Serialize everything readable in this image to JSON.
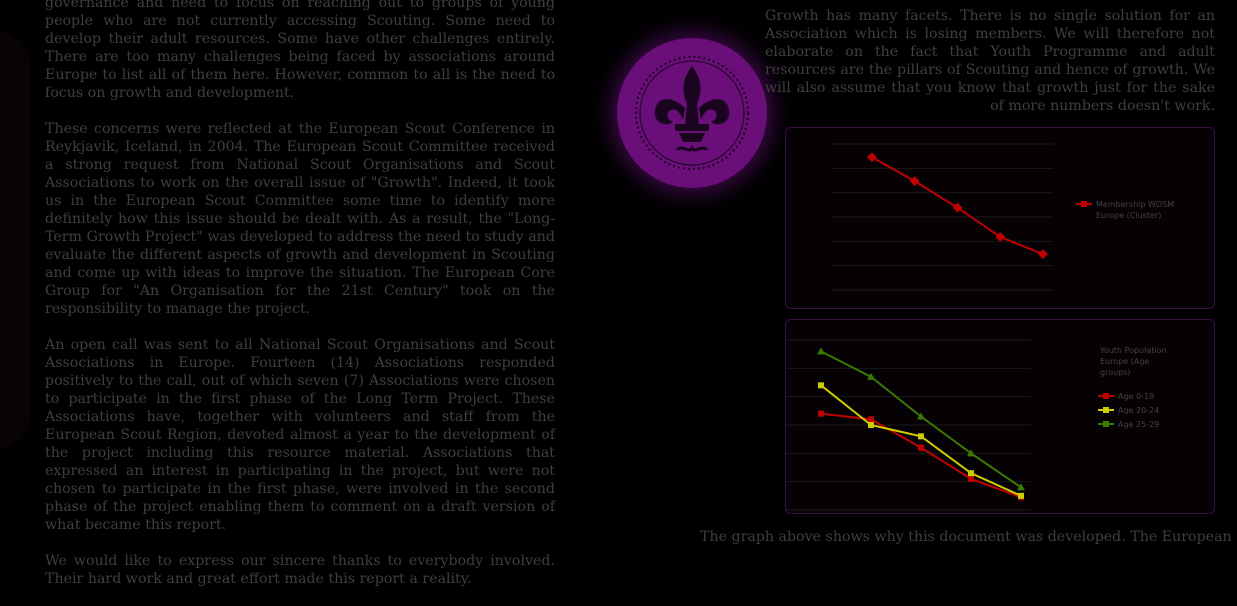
{
  "left_column": {
    "paragraphs": [
      "governance and need to focus on reaching out to groups of young people who are not currently accessing Scouting. Some need to develop their adult resources. Some have other challenges entirely. There are too many challenges being faced by associations around Europe to list all of them here. However, common to all is the need to focus on growth and development.",
      "These concerns were reflected at the European Scout Conference in Reykjavik, Iceland, in 2004. The European Scout Committee received a strong request from National Scout Organisations and Scout Associations to work on the overall issue of \"Growth\". Indeed, it took us in the European Scout Committee some time to identify more definitely how this issue should be dealt with. As a result, the \"Long-Term Growth Project\" was developed to address the need to study and evaluate the different aspects of growth and development in Scouting and come up with ideas to improve the situation. The European Core Group for \"An Organisation for the 21st Century\" took on the responsibility to manage the project.",
      "An open call was sent to all National Scout Organisations and Scout Associations in Europe. Fourteen (14) Associations responded positively to the call, out of which seven (7) Associations were chosen to participate in the first phase of the Long Term Project. These Associations have, together with volunteers and staff from the European Scout Region, devoted almost a year to the development of the project including this resource material. Associations that expressed an interest in participating in the project, but were not chosen to participate in the first phase, were involved in the second phase of the project enabling them to comment on a draft version of what became this report.",
      "We would like to express our sincere thanks to everybody involved. Their hard work and great effort made this report a reality."
    ]
  },
  "right_column": {
    "intro_first": "Growth has many facets. There is no single solution for an Association which is losing members. We will therefore not elaborate on the fact that Youth Programme and adult resources are the pillars of Scouting and hence of growth. We will also assume that you know that growth just for the sake of more numbers doesn't work.",
    "bottom_text": "The graph above shows why this document was developed. The European"
  },
  "chart_data": [
    {
      "type": "line",
      "x": [
        1,
        2,
        3,
        4,
        5
      ],
      "series": [
        {
          "name": "Membership WOSM Europe (Cluster)",
          "values": [
            100,
            82,
            62,
            40,
            27
          ],
          "color": "#c00000"
        }
      ],
      "ylim": [
        0,
        110
      ],
      "legend_placement": "right",
      "grid": true
    },
    {
      "type": "line",
      "title": "Youth Population Europe (Age groups)",
      "x": [
        1,
        2,
        3,
        4,
        5
      ],
      "series": [
        {
          "name": "Age 0-19",
          "values": [
            68,
            64,
            44,
            22,
            9
          ],
          "color": "#c00000"
        },
        {
          "name": "Age 20-24",
          "values": [
            88,
            60,
            52,
            26,
            10
          ],
          "color": "#cccc00"
        },
        {
          "name": "Age 25-29",
          "values": [
            112,
            94,
            66,
            40,
            16
          ],
          "color": "#3a7a00"
        }
      ],
      "ylim": [
        0,
        120
      ],
      "legend_placement": "right",
      "grid": true
    }
  ],
  "colors": {
    "background": "#000000",
    "text": "#3f3f3f",
    "emblem": "#6a0f7a",
    "chart_border": "#3a0f48"
  },
  "icons": {
    "emblem": "fleur-de-lis-icon"
  }
}
